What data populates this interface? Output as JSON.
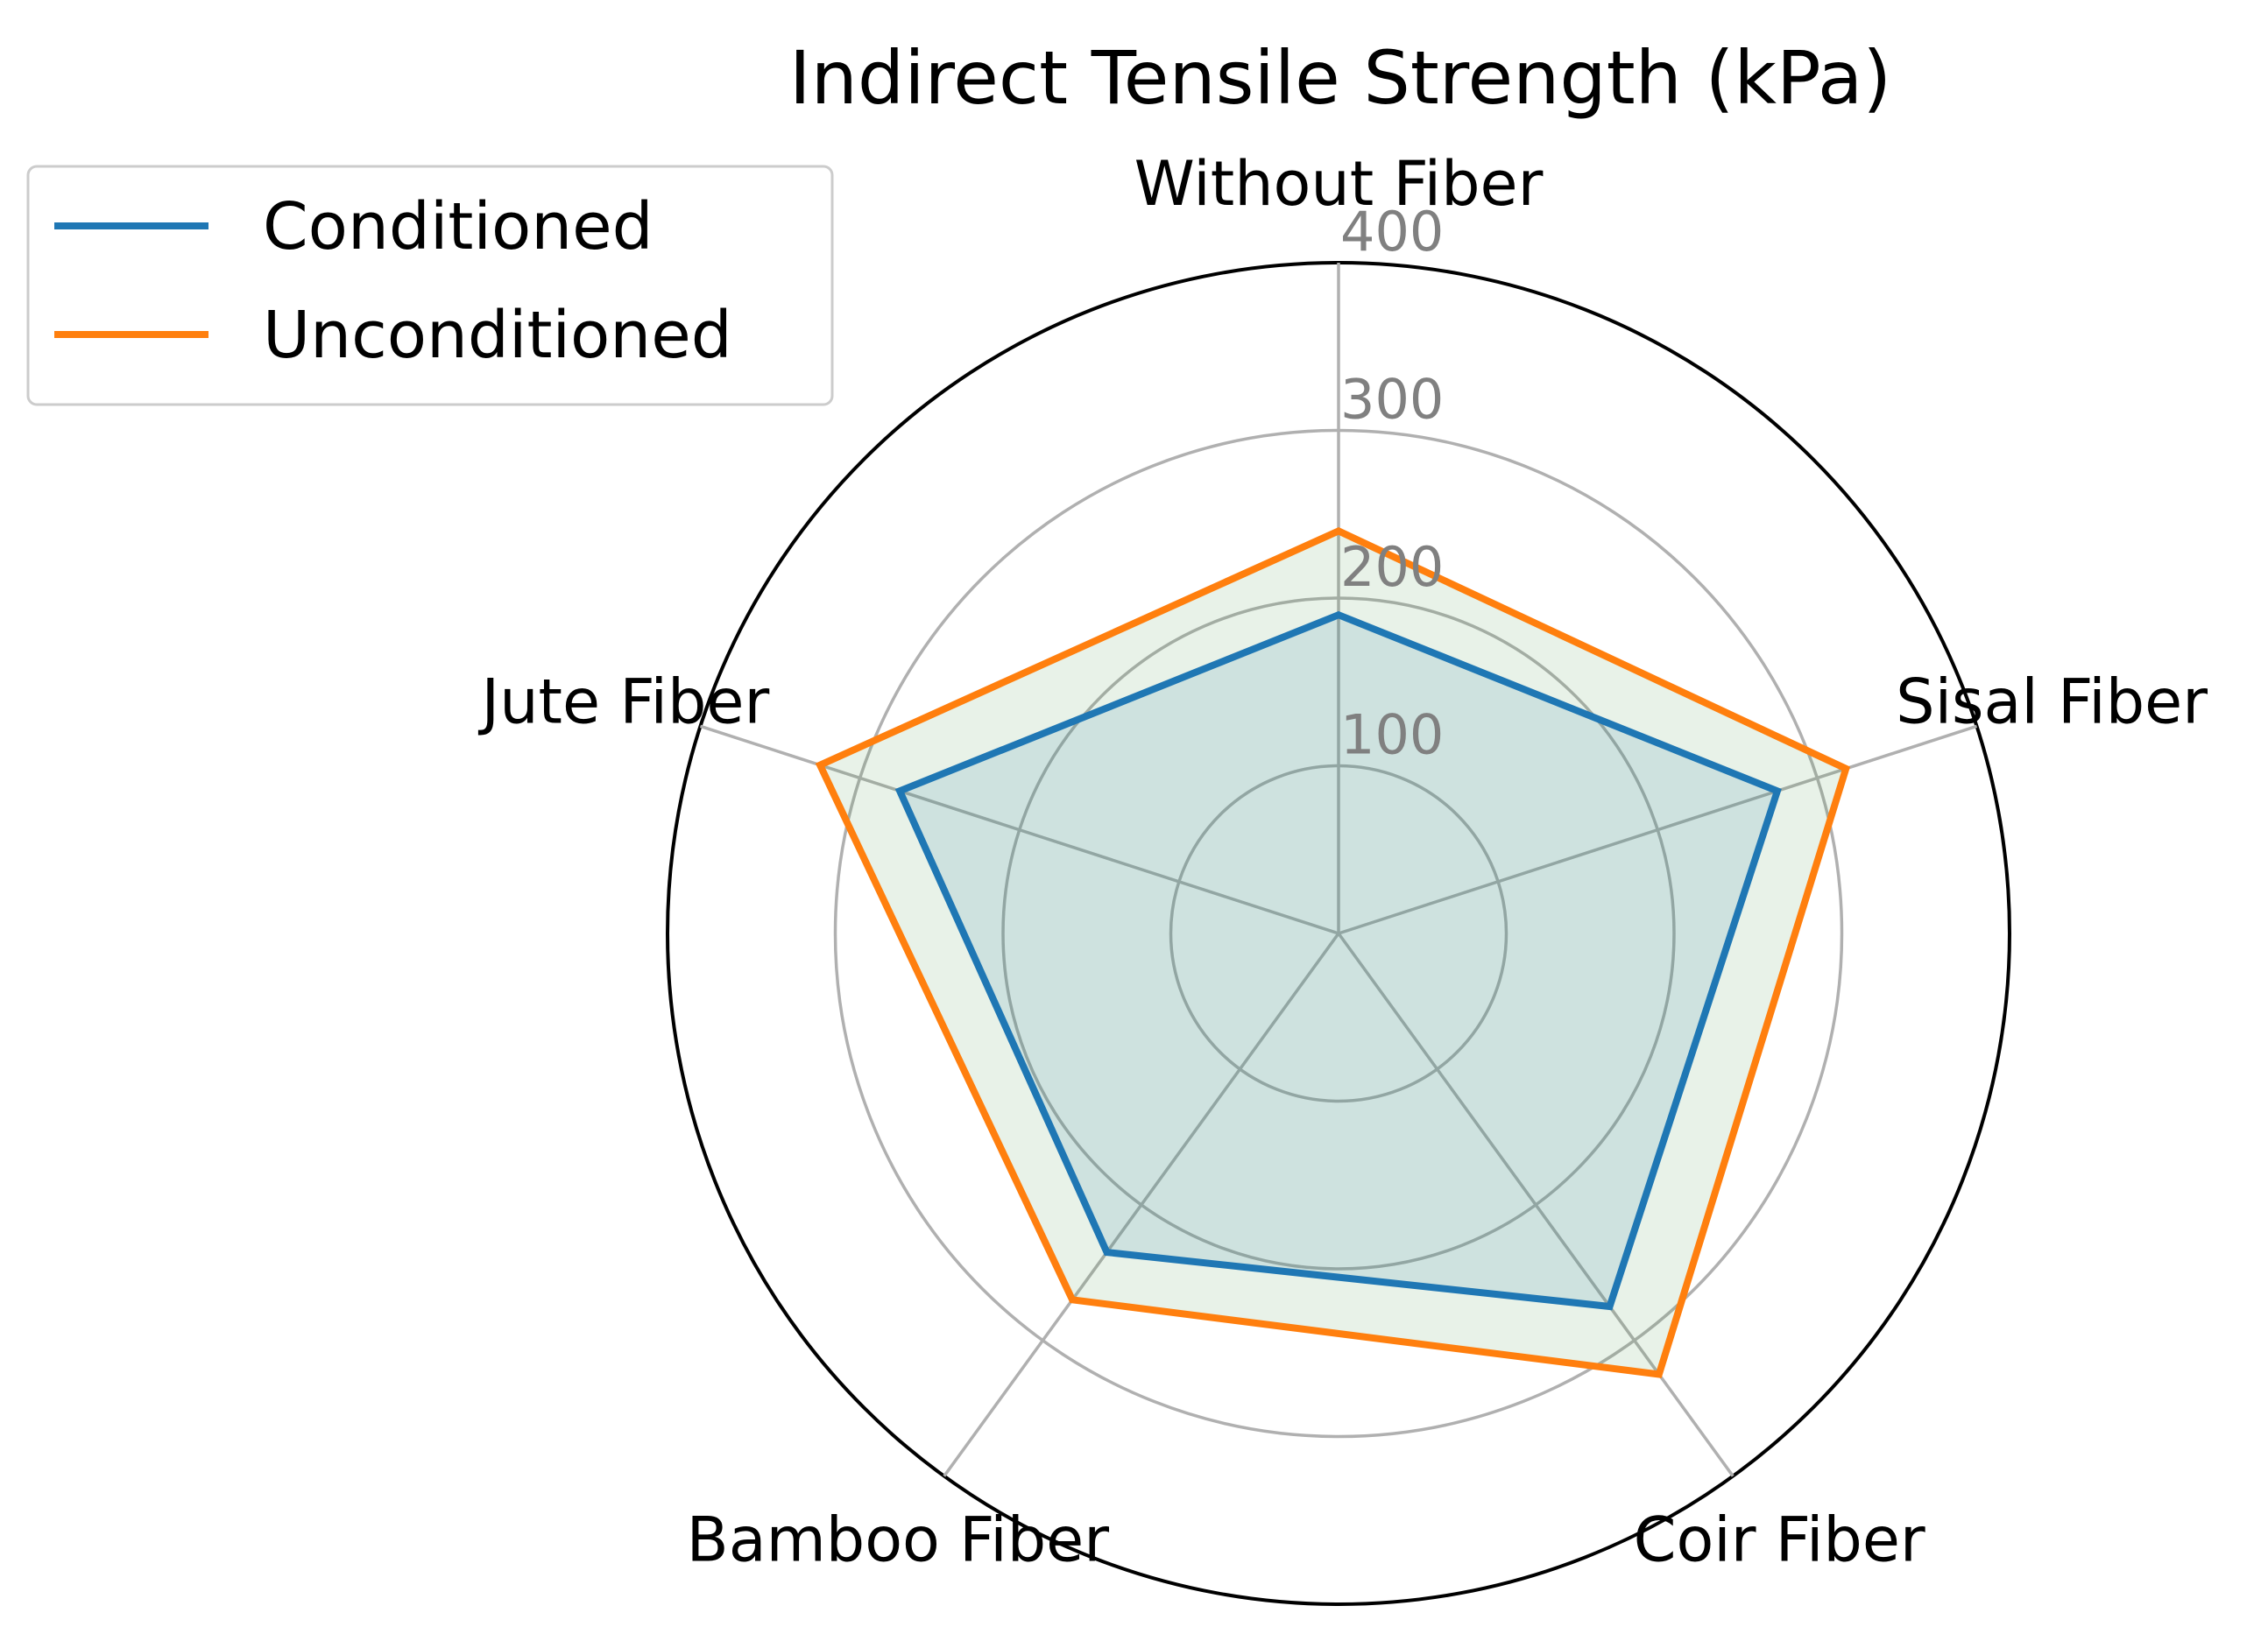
{
  "chart_data": {
    "type": "radar",
    "title": "Indirect Tensile Strength (kPa)",
    "categories": [
      "Without Fiber",
      "Sisal Fiber",
      "Coir Fiber",
      "Bamboo Fiber",
      "Jute Fiber"
    ],
    "rlim": [
      0,
      400
    ],
    "rticks": [
      100,
      200,
      300,
      400
    ],
    "rtick_labels": [
      "100",
      "200",
      "300",
      "400"
    ],
    "grid": true,
    "legend_position": "top-left",
    "series": [
      {
        "name": "Conditioned",
        "values": [
          190,
          275,
          275,
          235,
          275
        ],
        "color": "#1f77b4",
        "fill_color": "#1f77b4"
      },
      {
        "name": "Unconditioned",
        "values": [
          240,
          318,
          325,
          270,
          325
        ],
        "color": "#ff7f0e",
        "fill_color": "#4c9c4c"
      }
    ]
  }
}
